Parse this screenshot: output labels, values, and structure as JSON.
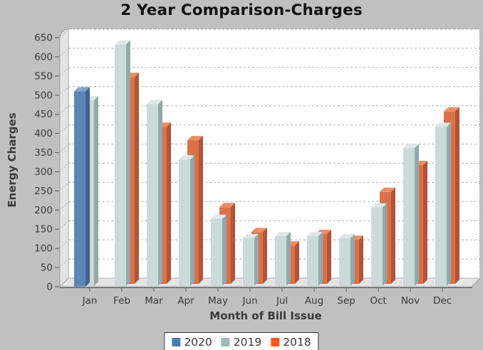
{
  "title": "2 Year Comparison-Charges",
  "colors": {
    "background": "#c0c0c0",
    "plot_background": "#ffffff",
    "wall": "#e4e4e4",
    "gridline": "#b3b3b3",
    "axis_line": "#555555",
    "axis_text": "#3a3a3a",
    "title_text": "#111111",
    "legend_border": "#333333"
  },
  "chart_data": {
    "type": "bar",
    "style": "3d-grouped",
    "title": "2 Year Comparison-Charges",
    "xlabel": "Month of Bill Issue",
    "ylabel": "Energy Charges",
    "ylim": [
      0,
      650
    ],
    "ytick_step": 50,
    "yticks": [
      0,
      50,
      100,
      150,
      200,
      250,
      300,
      350,
      400,
      450,
      500,
      550,
      600,
      650
    ],
    "grid": true,
    "gridline_style": "dashed",
    "legend_position": "bottom",
    "categories": [
      "Jan",
      "Feb",
      "Mar",
      "Apr",
      "May",
      "Jun",
      "Jul",
      "Aug",
      "Sep",
      "Oct",
      "Nov",
      "Dec"
    ],
    "series": [
      {
        "name": "2020",
        "legend_color": "#4a7cb0",
        "front": "#5b87b6",
        "top": "#7fa5c9",
        "side": "#41648b",
        "values": [
          510,
          null,
          null,
          null,
          null,
          null,
          null,
          null,
          null,
          null,
          null,
          null
        ]
      },
      {
        "name": "2019",
        "legend_color": "#9fb9ba",
        "front": "#ccd9da",
        "top": "#dfe8e8",
        "side": "#94a8aa",
        "values": [
          485,
          630,
          475,
          330,
          175,
          125,
          130,
          130,
          125,
          205,
          360,
          415
        ]
      },
      {
        "name": "2018",
        "legend_color": "#f9551d",
        "front": "#d9714b",
        "top": "#e98e67",
        "side": "#b05635",
        "values": [
          null,
          540,
          410,
          375,
          200,
          135,
          100,
          130,
          115,
          240,
          310,
          450
        ]
      }
    ]
  }
}
